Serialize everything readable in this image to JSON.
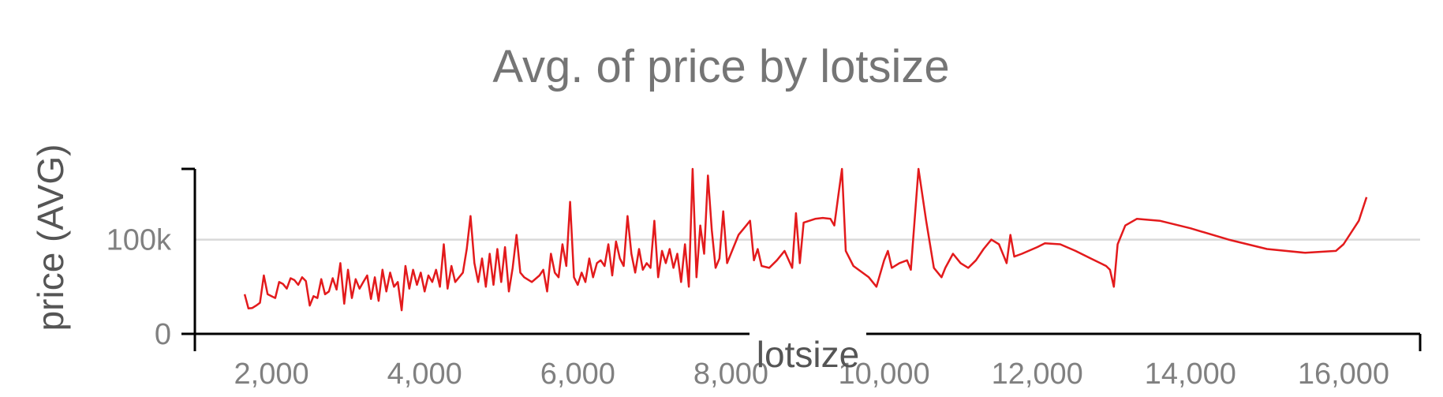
{
  "chart_data": {
    "type": "line",
    "title": "Avg. of price by lotsize",
    "xlabel": "lotsize",
    "ylabel": "price (AVG)",
    "xlim": [
      1000,
      17000
    ],
    "ylim": [
      0,
      175000
    ],
    "x_ticks": [
      {
        "value": 2000,
        "label": "2,000"
      },
      {
        "value": 4000,
        "label": "4,000"
      },
      {
        "value": 6000,
        "label": "6,000"
      },
      {
        "value": 8000,
        "label": "8,000"
      },
      {
        "value": 10000,
        "label": "10,000"
      },
      {
        "value": 12000,
        "label": "12,000"
      },
      {
        "value": 14000,
        "label": "14,000"
      },
      {
        "value": 16000,
        "label": "16,000"
      }
    ],
    "y_ticks": [
      {
        "value": 0,
        "label": "0"
      },
      {
        "value": 100000,
        "label": "100k"
      }
    ],
    "grid": {
      "y": true,
      "x": false
    },
    "series": [
      {
        "name": "",
        "color": "#e31a1c",
        "points": [
          [
            1650,
            42000
          ],
          [
            1700,
            27000
          ],
          [
            1750,
            27500
          ],
          [
            1800,
            30000
          ],
          [
            1850,
            33000
          ],
          [
            1900,
            62000
          ],
          [
            1950,
            42000
          ],
          [
            2000,
            40000
          ],
          [
            2050,
            38000
          ],
          [
            2100,
            55000
          ],
          [
            2150,
            53000
          ],
          [
            2200,
            48000
          ],
          [
            2250,
            59000
          ],
          [
            2300,
            57000
          ],
          [
            2350,
            52000
          ],
          [
            2400,
            60000
          ],
          [
            2450,
            56000
          ],
          [
            2500,
            30000
          ],
          [
            2550,
            40000
          ],
          [
            2600,
            38000
          ],
          [
            2650,
            58000
          ],
          [
            2700,
            42000
          ],
          [
            2750,
            45000
          ],
          [
            2800,
            59000
          ],
          [
            2850,
            47000
          ],
          [
            2900,
            75000
          ],
          [
            2950,
            32000
          ],
          [
            3000,
            68000
          ],
          [
            3050,
            38000
          ],
          [
            3100,
            58000
          ],
          [
            3150,
            48000
          ],
          [
            3200,
            55000
          ],
          [
            3250,
            62000
          ],
          [
            3300,
            37000
          ],
          [
            3350,
            60000
          ],
          [
            3400,
            35000
          ],
          [
            3450,
            68000
          ],
          [
            3500,
            45000
          ],
          [
            3550,
            65000
          ],
          [
            3600,
            50000
          ],
          [
            3650,
            55000
          ],
          [
            3700,
            25000
          ],
          [
            3750,
            72000
          ],
          [
            3800,
            48000
          ],
          [
            3850,
            68000
          ],
          [
            3900,
            52000
          ],
          [
            3950,
            65000
          ],
          [
            4000,
            45000
          ],
          [
            4050,
            62000
          ],
          [
            4100,
            55000
          ],
          [
            4150,
            68000
          ],
          [
            4200,
            50000
          ],
          [
            4250,
            95000
          ],
          [
            4300,
            48000
          ],
          [
            4350,
            72000
          ],
          [
            4400,
            55000
          ],
          [
            4450,
            60000
          ],
          [
            4500,
            65000
          ],
          [
            4550,
            90000
          ],
          [
            4600,
            125000
          ],
          [
            4650,
            75000
          ],
          [
            4700,
            55000
          ],
          [
            4750,
            80000
          ],
          [
            4800,
            50000
          ],
          [
            4850,
            85000
          ],
          [
            4900,
            52000
          ],
          [
            4950,
            90000
          ],
          [
            5000,
            55000
          ],
          [
            5050,
            92000
          ],
          [
            5100,
            45000
          ],
          [
            5150,
            70000
          ],
          [
            5200,
            105000
          ],
          [
            5250,
            65000
          ],
          [
            5300,
            60000
          ],
          [
            5400,
            55000
          ],
          [
            5500,
            62000
          ],
          [
            5550,
            68000
          ],
          [
            5600,
            45000
          ],
          [
            5650,
            85000
          ],
          [
            5700,
            65000
          ],
          [
            5750,
            60000
          ],
          [
            5800,
            95000
          ],
          [
            5850,
            72000
          ],
          [
            5900,
            140000
          ],
          [
            5950,
            60000
          ],
          [
            6000,
            52000
          ],
          [
            6050,
            65000
          ],
          [
            6100,
            55000
          ],
          [
            6150,
            80000
          ],
          [
            6200,
            60000
          ],
          [
            6250,
            75000
          ],
          [
            6300,
            78000
          ],
          [
            6350,
            72000
          ],
          [
            6400,
            95000
          ],
          [
            6450,
            62000
          ],
          [
            6500,
            98000
          ],
          [
            6550,
            80000
          ],
          [
            6600,
            72000
          ],
          [
            6650,
            125000
          ],
          [
            6700,
            85000
          ],
          [
            6750,
            65000
          ],
          [
            6800,
            90000
          ],
          [
            6850,
            68000
          ],
          [
            6900,
            75000
          ],
          [
            6950,
            70000
          ],
          [
            7000,
            120000
          ],
          [
            7050,
            60000
          ],
          [
            7100,
            88000
          ],
          [
            7150,
            75000
          ],
          [
            7200,
            90000
          ],
          [
            7250,
            70000
          ],
          [
            7300,
            85000
          ],
          [
            7350,
            55000
          ],
          [
            7400,
            95000
          ],
          [
            7450,
            50000
          ],
          [
            7500,
            175000
          ],
          [
            7550,
            60000
          ],
          [
            7600,
            115000
          ],
          [
            7650,
            85000
          ],
          [
            7700,
            168000
          ],
          [
            7750,
            110000
          ],
          [
            7800,
            70000
          ],
          [
            7850,
            80000
          ],
          [
            7900,
            130000
          ],
          [
            7950,
            75000
          ],
          [
            8000,
            85000
          ],
          [
            8100,
            105000
          ],
          [
            8200,
            115000
          ],
          [
            8250,
            120000
          ],
          [
            8300,
            78000
          ],
          [
            8350,
            90000
          ],
          [
            8400,
            72000
          ],
          [
            8500,
            70000
          ],
          [
            8600,
            78000
          ],
          [
            8700,
            88000
          ],
          [
            8800,
            70000
          ],
          [
            8850,
            128000
          ],
          [
            8900,
            75000
          ],
          [
            8950,
            118000
          ],
          [
            9100,
            122000
          ],
          [
            9200,
            123000
          ],
          [
            9300,
            122000
          ],
          [
            9350,
            115000
          ],
          [
            9400,
            145000
          ],
          [
            9450,
            175000
          ],
          [
            9500,
            88000
          ],
          [
            9600,
            72000
          ],
          [
            9800,
            60000
          ],
          [
            9900,
            50000
          ],
          [
            10000,
            78000
          ],
          [
            10050,
            88000
          ],
          [
            10100,
            70000
          ],
          [
            10200,
            75000
          ],
          [
            10300,
            78000
          ],
          [
            10350,
            68000
          ],
          [
            10450,
            175000
          ],
          [
            10550,
            120000
          ],
          [
            10650,
            70000
          ],
          [
            10750,
            60000
          ],
          [
            10800,
            70000
          ],
          [
            10900,
            85000
          ],
          [
            11000,
            75000
          ],
          [
            11100,
            70000
          ],
          [
            11200,
            78000
          ],
          [
            11300,
            90000
          ],
          [
            11400,
            100000
          ],
          [
            11500,
            95000
          ],
          [
            11600,
            75000
          ],
          [
            11650,
            105000
          ],
          [
            11700,
            82000
          ],
          [
            11800,
            85000
          ],
          [
            12000,
            92000
          ],
          [
            12100,
            96000
          ],
          [
            12300,
            95000
          ],
          [
            12500,
            88000
          ],
          [
            12700,
            80000
          ],
          [
            12900,
            72000
          ],
          [
            12950,
            68000
          ],
          [
            13000,
            50000
          ],
          [
            13050,
            95000
          ],
          [
            13150,
            115000
          ],
          [
            13300,
            122000
          ],
          [
            13600,
            120000
          ],
          [
            14000,
            112000
          ],
          [
            14500,
            100000
          ],
          [
            15000,
            90000
          ],
          [
            15500,
            86000
          ],
          [
            15900,
            88000
          ],
          [
            16000,
            95000
          ],
          [
            16200,
            120000
          ],
          [
            16300,
            145000
          ]
        ]
      }
    ]
  }
}
